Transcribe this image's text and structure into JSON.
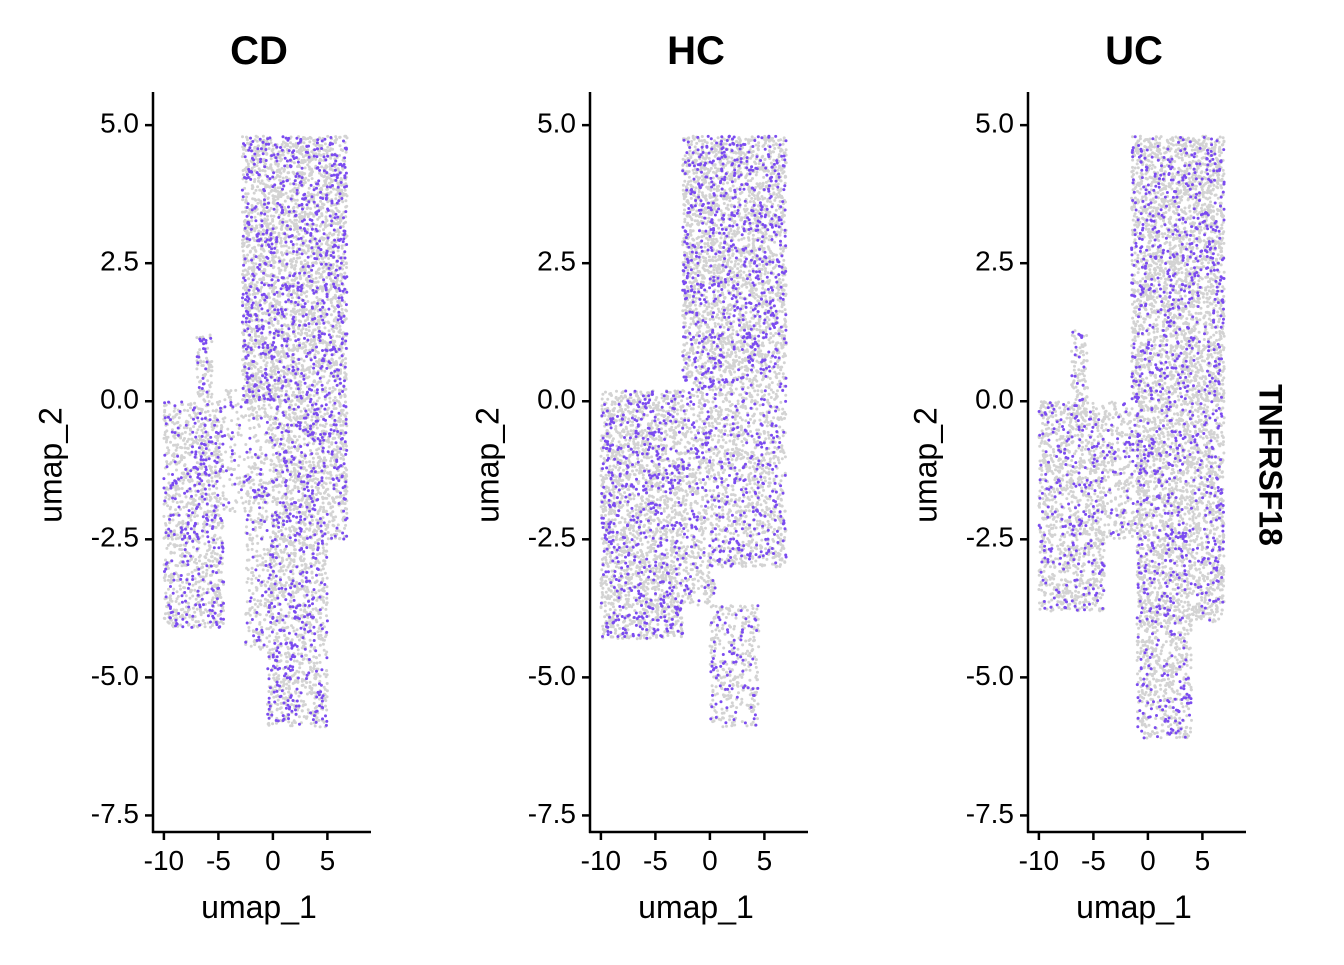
{
  "chart_data": {
    "type": "scatter",
    "feature": "TNFRSF18",
    "colors": {
      "low": "#d3d3d3",
      "high": "#7b4bf0"
    },
    "xlabel": "umap_1",
    "ylabel": "umap_2",
    "xlim": [
      -11.0,
      9.0
    ],
    "ylim": [
      -7.8,
      5.6
    ],
    "x_ticks": [
      {
        "value": -10,
        "label": "-10"
      },
      {
        "value": -5,
        "label": "-5"
      },
      {
        "value": 0,
        "label": "0"
      },
      {
        "value": 5,
        "label": "5"
      }
    ],
    "y_ticks": [
      {
        "value": 5.0,
        "label": "5.0"
      },
      {
        "value": 2.5,
        "label": "2.5"
      },
      {
        "value": 0.0,
        "label": "0.0"
      },
      {
        "value": -2.5,
        "label": "-2.5"
      },
      {
        "value": -5.0,
        "label": "-5.0"
      },
      {
        "value": -7.5,
        "label": "-7.5"
      }
    ],
    "panels": [
      {
        "title": "CD",
        "expressing_fraction": 0.24,
        "regions": [
          {
            "x_range": [
              -10.0,
              -4.5
            ],
            "y_range": [
              -4.1,
              0.0
            ],
            "density": 0.75
          },
          {
            "x_range": [
              -7.0,
              -5.5
            ],
            "y_range": [
              0.0,
              1.2
            ],
            "density": 0.7
          },
          {
            "x_range": [
              -4.5,
              -2.5
            ],
            "y_range": [
              -2.0,
              0.2
            ],
            "density": 0.3
          },
          {
            "x_range": [
              -2.5,
              0.0
            ],
            "y_range": [
              -4.5,
              0.5
            ],
            "density": 0.5
          },
          {
            "x_range": [
              -2.8,
              6.8
            ],
            "y_range": [
              0.0,
              4.8
            ],
            "density": 1.0
          },
          {
            "x_range": [
              0.0,
              6.8
            ],
            "y_range": [
              -2.5,
              0.0
            ],
            "density": 0.9
          },
          {
            "x_range": [
              -0.5,
              5.0
            ],
            "y_range": [
              -5.9,
              -2.5
            ],
            "density": 0.75
          }
        ]
      },
      {
        "title": "HC",
        "expressing_fraction": 0.22,
        "regions": [
          {
            "x_range": [
              -10.0,
              -2.5
            ],
            "y_range": [
              -4.3,
              0.2
            ],
            "density": 0.95
          },
          {
            "x_range": [
              -2.5,
              0.5
            ],
            "y_range": [
              -3.7,
              0.5
            ],
            "density": 0.7
          },
          {
            "x_range": [
              0.0,
              4.5
            ],
            "y_range": [
              -5.9,
              -3.7
            ],
            "density": 0.55
          },
          {
            "x_range": [
              0.5,
              7.0
            ],
            "y_range": [
              -3.0,
              0.5
            ],
            "density": 0.7
          },
          {
            "x_range": [
              -2.5,
              7.0
            ],
            "y_range": [
              0.5,
              4.8
            ],
            "density": 1.0
          }
        ]
      },
      {
        "title": "UC",
        "expressing_fraction": 0.18,
        "regions": [
          {
            "x_range": [
              -10.0,
              -4.0
            ],
            "y_range": [
              -3.8,
              0.0
            ],
            "density": 0.8
          },
          {
            "x_range": [
              -7.0,
              -5.5
            ],
            "y_range": [
              0.0,
              1.3
            ],
            "density": 0.65
          },
          {
            "x_range": [
              -4.0,
              -0.5
            ],
            "y_range": [
              -2.5,
              0.0
            ],
            "density": 0.55
          },
          {
            "x_range": [
              -1.5,
              7.0
            ],
            "y_range": [
              0.0,
              4.8
            ],
            "density": 1.0
          },
          {
            "x_range": [
              -1.0,
              7.0
            ],
            "y_range": [
              -4.0,
              0.0
            ],
            "density": 0.9
          },
          {
            "x_range": [
              -1.0,
              4.0
            ],
            "y_range": [
              -6.1,
              -4.0
            ],
            "density": 0.7
          }
        ]
      }
    ]
  }
}
